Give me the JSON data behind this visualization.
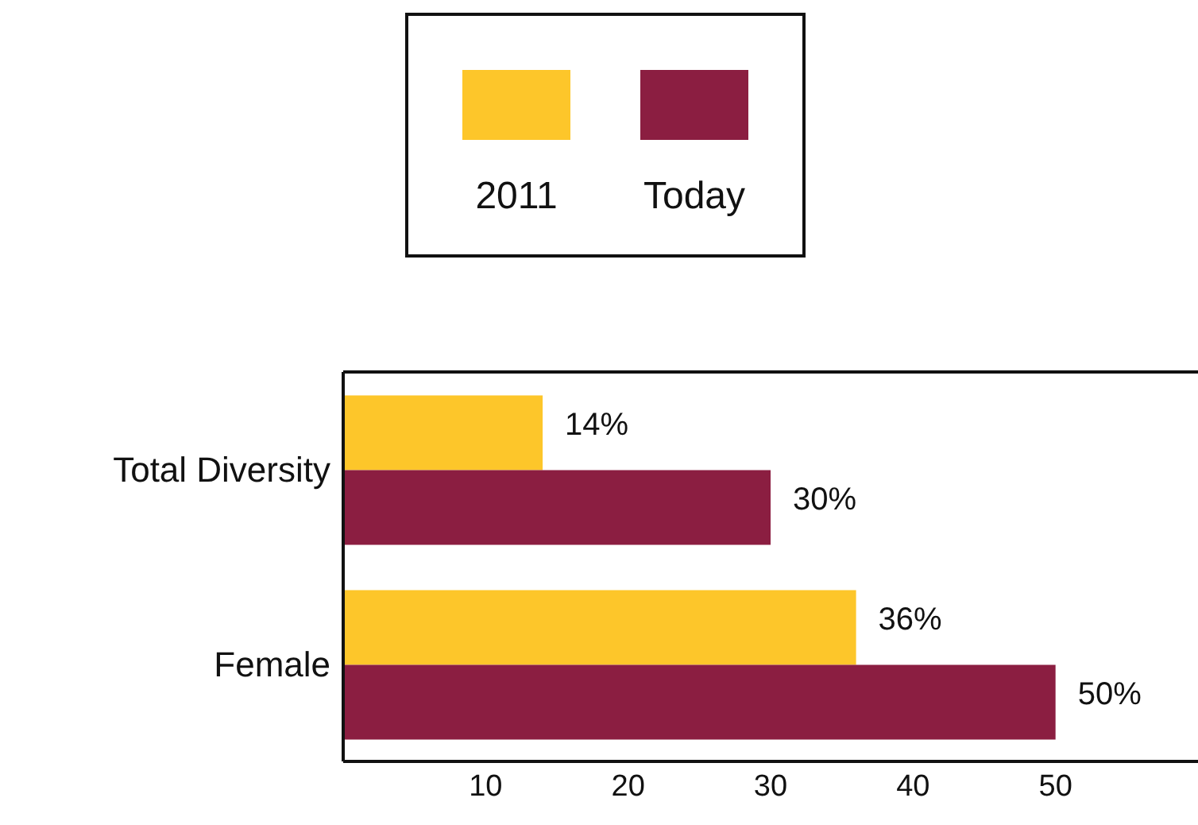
{
  "chart_data": {
    "type": "bar",
    "orientation": "horizontal",
    "categories": [
      "Total Diversity",
      "Female"
    ],
    "series": [
      {
        "name": "2011",
        "color": "#fdc62a",
        "values": [
          14,
          36
        ],
        "value_labels": [
          "14%",
          "36%"
        ]
      },
      {
        "name": "Today",
        "color": "#8b1e41",
        "values": [
          30,
          50
        ],
        "value_labels": [
          "30%",
          "50%"
        ]
      }
    ],
    "xlim": [
      0,
      60
    ],
    "xticks": [
      10,
      20,
      30,
      40,
      50
    ],
    "grid": false,
    "legend": "top"
  }
}
